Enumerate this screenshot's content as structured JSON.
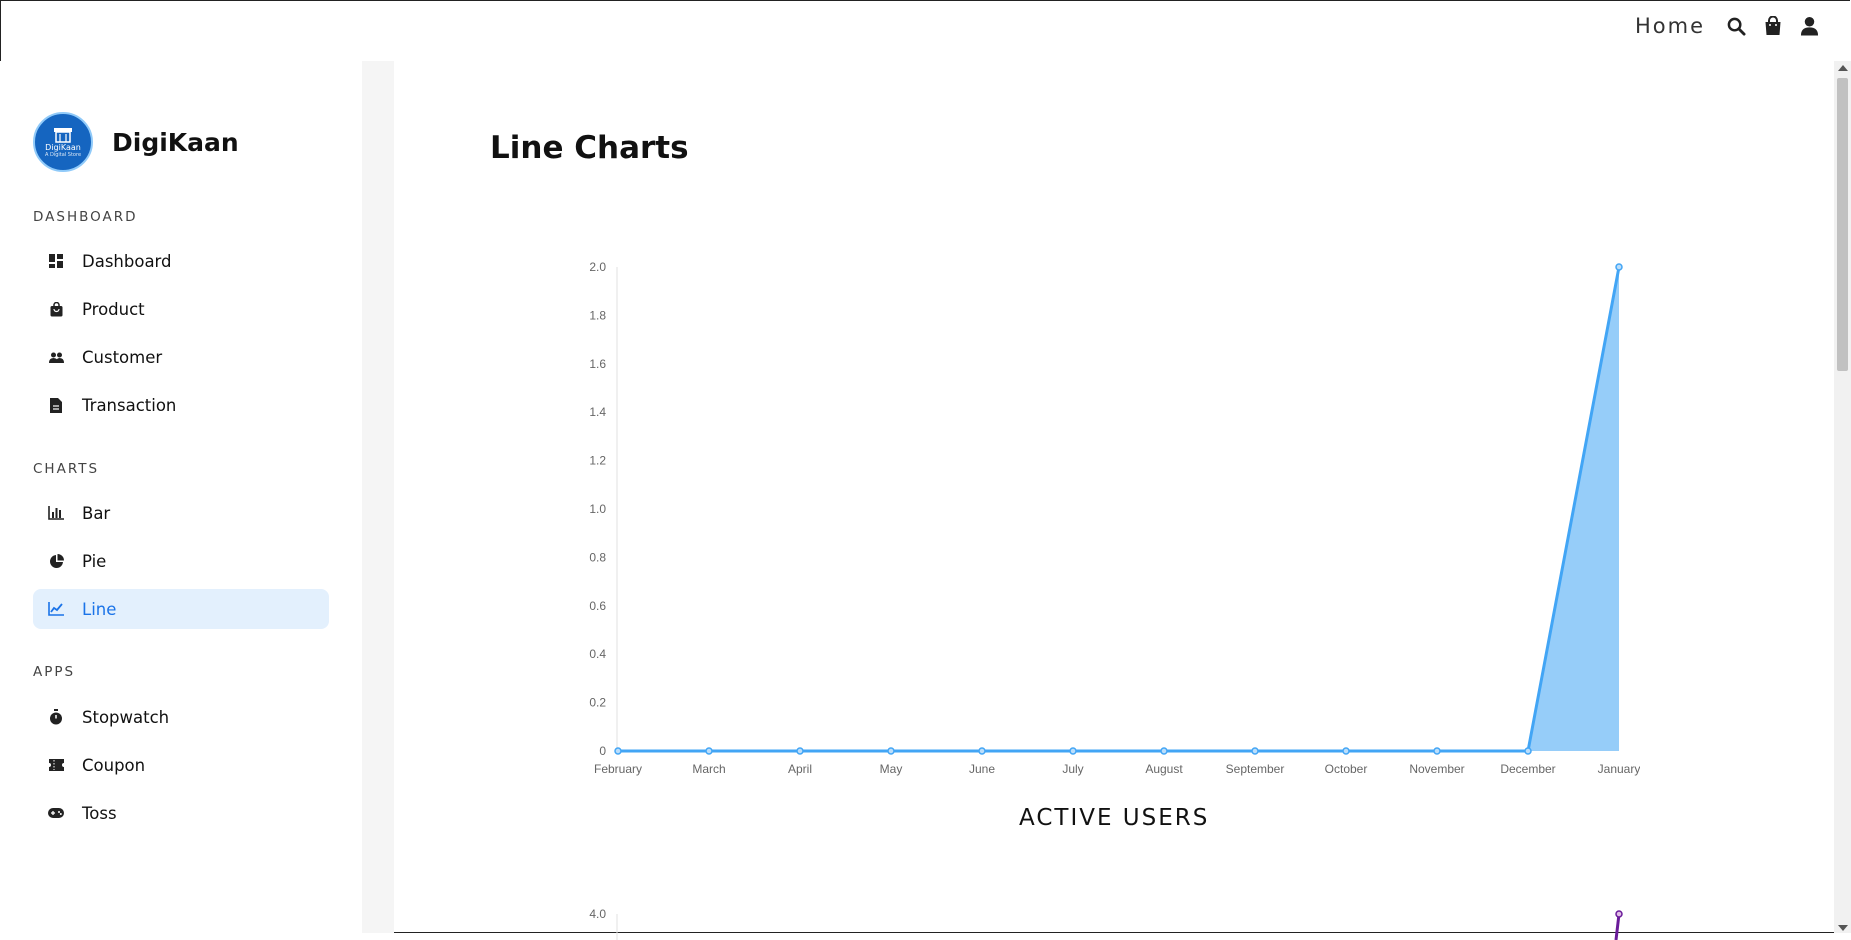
{
  "topnav": {
    "home_label": "Home"
  },
  "sidebar": {
    "brand": {
      "name": "DigiKaan",
      "logo_text": "DigiKaan",
      "logo_subtext": "A Digital Store"
    },
    "sections": [
      {
        "title": "DASHBOARD",
        "items": [
          {
            "label": "Dashboard",
            "icon": "dashboard-icon"
          },
          {
            "label": "Product",
            "icon": "shopping-bag-icon"
          },
          {
            "label": "Customer",
            "icon": "people-icon"
          },
          {
            "label": "Transaction",
            "icon": "document-icon"
          }
        ]
      },
      {
        "title": "CHARTS",
        "items": [
          {
            "label": "Bar",
            "icon": "bar-chart-icon"
          },
          {
            "label": "Pie",
            "icon": "pie-chart-icon"
          },
          {
            "label": "Line",
            "icon": "line-chart-icon",
            "active": true
          }
        ]
      },
      {
        "title": "APPS",
        "items": [
          {
            "label": "Stopwatch",
            "icon": "stopwatch-icon"
          },
          {
            "label": "Coupon",
            "icon": "coupon-icon"
          },
          {
            "label": "Toss",
            "icon": "gamepad-icon"
          }
        ]
      }
    ]
  },
  "main": {
    "page_title": "Line Charts",
    "chart1_caption": "ACTIVE USERS"
  },
  "colors": {
    "accent": "#1a73e8",
    "active_bg": "#e3f0fd",
    "line": "#42a5f5",
    "fill": "#90caf9",
    "second_line": "#6a1b9a"
  },
  "chart_data": [
    {
      "type": "area",
      "title": "ACTIVE USERS",
      "categories": [
        "February",
        "March",
        "April",
        "May",
        "June",
        "July",
        "August",
        "September",
        "October",
        "November",
        "December",
        "January"
      ],
      "values": [
        0,
        0,
        0,
        0,
        0,
        0,
        0,
        0,
        0,
        0,
        0,
        2
      ],
      "ylim": [
        0,
        2.0
      ],
      "yticks": [
        "0",
        "0.2",
        "0.4",
        "0.6",
        "0.8",
        "1.0",
        "1.2",
        "1.4",
        "1.6",
        "1.8",
        "2.0"
      ],
      "grid": false
    },
    {
      "type": "line",
      "ylim": [
        0,
        4.0
      ],
      "yticks": [
        "4.0"
      ],
      "values_visible": [
        {
          "category": "January",
          "value": 4
        }
      ]
    }
  ]
}
